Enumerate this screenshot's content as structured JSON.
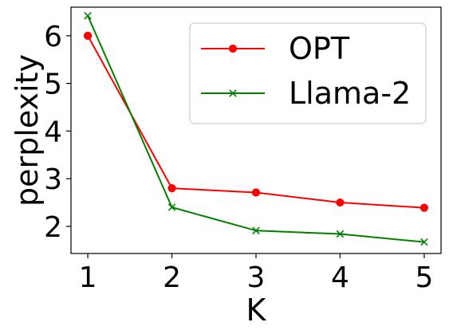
{
  "chart_data": {
    "type": "line",
    "title": "",
    "xlabel": "K",
    "ylabel": "perplexity",
    "x": [
      1,
      2,
      3,
      4,
      5
    ],
    "x_ticks": [
      "1",
      "2",
      "3",
      "4",
      "5"
    ],
    "y_ticks": [
      "2",
      "3",
      "4",
      "5",
      "6"
    ],
    "xlim": [
      0.8,
      5.2
    ],
    "ylim": [
      1.43,
      6.6
    ],
    "grid": false,
    "legend_position": "top-right",
    "series": [
      {
        "name": "OPT",
        "values": [
          6.0,
          2.8,
          2.71,
          2.5,
          2.39
        ],
        "color": "#ff0000",
        "marker": "circle"
      },
      {
        "name": "Llama-2",
        "values": [
          6.42,
          2.4,
          1.91,
          1.84,
          1.67
        ],
        "color": "#008000",
        "marker": "x"
      }
    ]
  }
}
